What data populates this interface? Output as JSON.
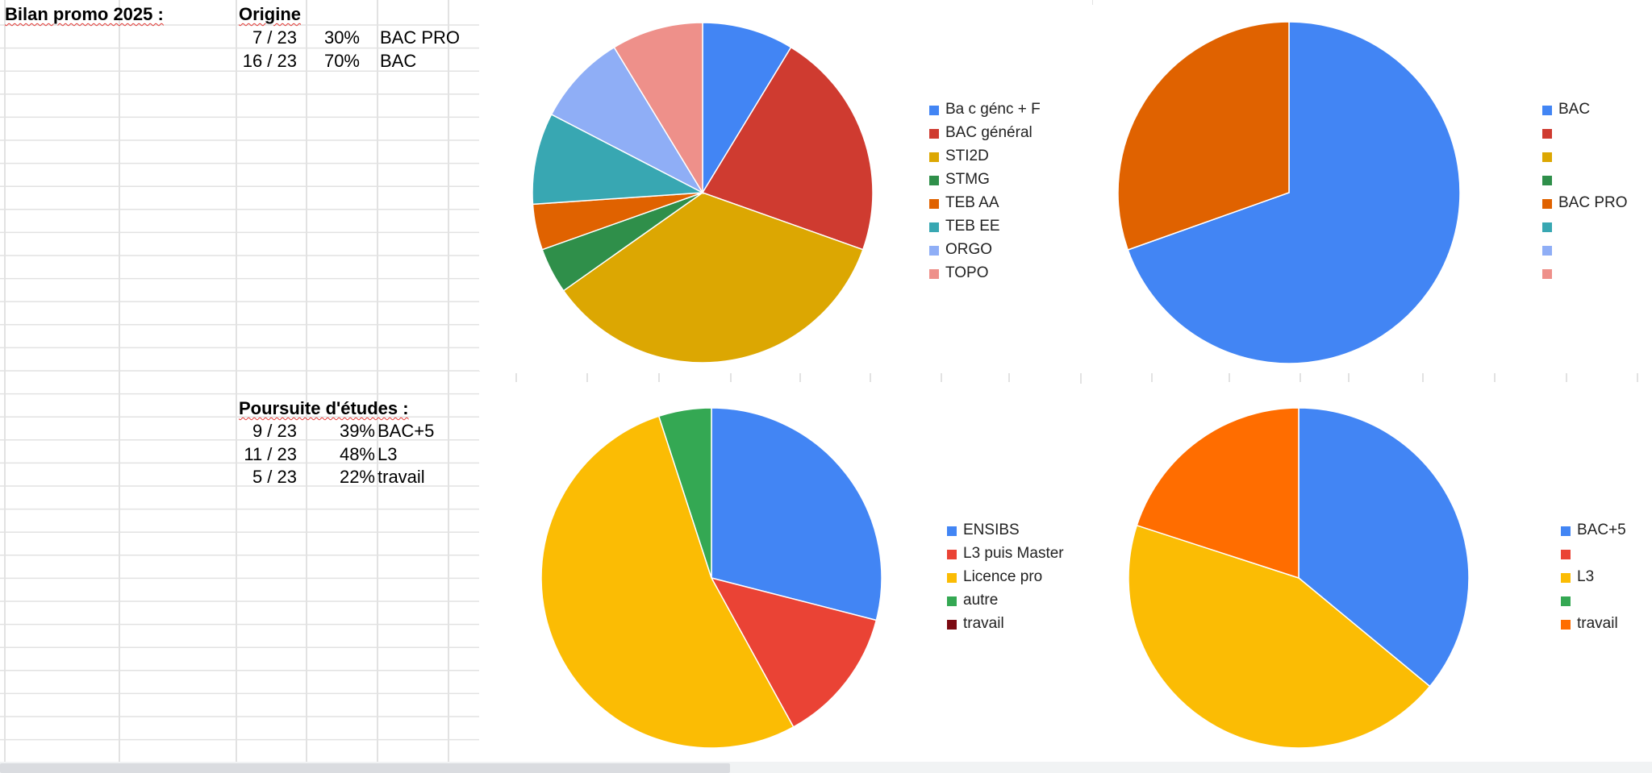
{
  "sheet": {
    "summary": {
      "title": "Bilan promo 2025 :",
      "origin": {
        "header": "Origine",
        "rows": [
          {
            "count": "7 / 23",
            "pct": "30%",
            "label": "BAC PRO"
          },
          {
            "count": "16 / 23",
            "pct": "70%",
            "label": "BAC"
          }
        ]
      },
      "continuation": {
        "header": "Poursuite d'études :",
        "rows": [
          {
            "count": "9 / 23",
            "pct": "39%",
            "label": "BAC+5"
          },
          {
            "count": "11 / 23",
            "pct": "48%",
            "label": "L3"
          },
          {
            "count": "5 / 23",
            "pct": "22%",
            "label": "travail"
          }
        ]
      }
    }
  },
  "chart_data": [
    {
      "type": "pie",
      "legend_position": "right",
      "categories": [
        "Ba c génc + F",
        "BAC général",
        "STI2D",
        "STMG",
        "TEB AA",
        "TEB EE",
        "ORGO",
        "TOPO"
      ],
      "values": [
        2,
        5,
        8,
        1,
        1,
        2,
        2,
        2
      ],
      "colors": [
        "#4285f4",
        "#cf3b30",
        "#dca702",
        "#2f8f4a",
        "#e06200",
        "#38a7b2",
        "#8faef6",
        "#ee908a"
      ]
    },
    {
      "type": "pie",
      "legend_position": "right",
      "categories": [
        "BAC",
        "",
        "",
        "",
        "BAC PRO",
        "",
        "",
        ""
      ],
      "values": [
        16,
        0,
        0,
        0,
        7,
        0,
        0,
        0
      ],
      "colors": [
        "#4285f4",
        "#cf3b30",
        "#dca702",
        "#2f8f4a",
        "#e06200",
        "#38a7b2",
        "#8faef6",
        "#ee908a"
      ]
    },
    {
      "type": "pie",
      "legend_position": "right",
      "categories": [
        "ENSIBS",
        "L3 puis Master",
        "Licence pro",
        "autre",
        "travail"
      ],
      "values": [
        29,
        13,
        53,
        5,
        0
      ],
      "colors": [
        "#4285f4",
        "#ea4335",
        "#fbbc04",
        "#34a853",
        "#7b0a12"
      ]
    },
    {
      "type": "pie",
      "legend_position": "right",
      "categories": [
        "BAC+5",
        "",
        "L3",
        "",
        "travail"
      ],
      "values": [
        9,
        0,
        11,
        0,
        5
      ],
      "colors": [
        "#4285f4",
        "#ea4335",
        "#fbbc04",
        "#34a853",
        "#ff6d00"
      ]
    }
  ]
}
